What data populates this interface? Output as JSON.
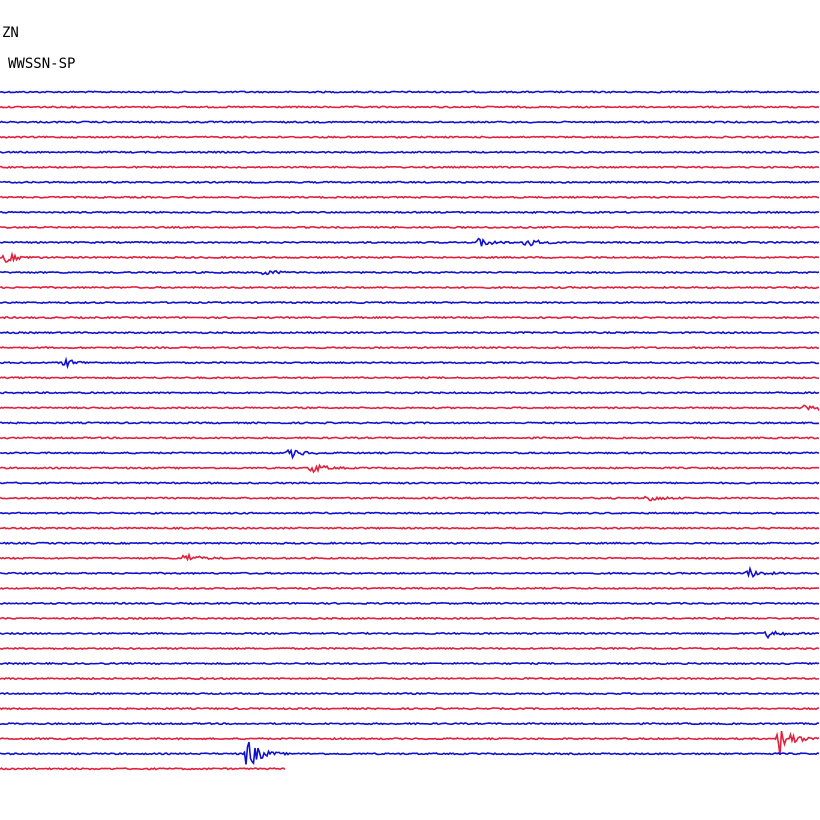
{
  "header": {
    "station": "ZN",
    "network": "WWSSN-SP"
  }
}
